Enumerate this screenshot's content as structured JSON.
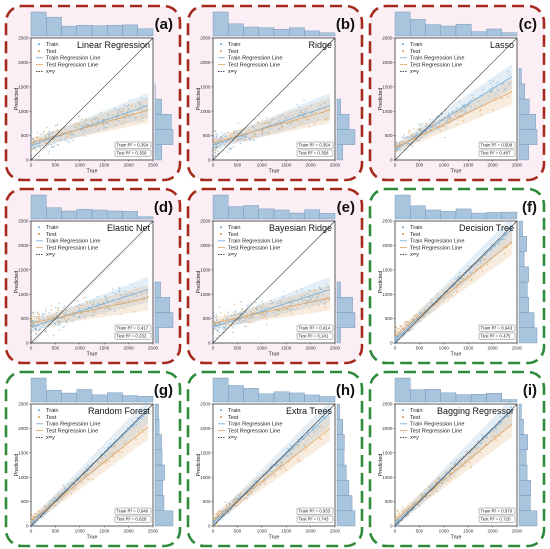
{
  "colors": {
    "red_frame": "#a52a1c",
    "green_frame": "#2e8b3a",
    "red_fill": "#fbeef5",
    "green_fill": "#ffffff",
    "train": "#7fb1d8",
    "test": "#e0a86a",
    "hist": "#a9c4dd",
    "xy": "#333333"
  },
  "legend": {
    "train": "Train",
    "test": "Test",
    "train_line": "Train Regression Line",
    "test_line": "Test Regression Line",
    "xy": "x=y"
  },
  "axis": {
    "xlabel": "True",
    "ylabel": "Predicted"
  },
  "chart_data": [
    {
      "label": "(a)",
      "title": "Linear Regression",
      "frame": "red",
      "type": "scatter",
      "xlim": [
        0,
        2500
      ],
      "ylim": [
        0,
        2500
      ],
      "xticks": [
        0,
        500,
        1000,
        1500,
        2000,
        2500
      ],
      "yticks": [
        0,
        500,
        1000,
        1500,
        2000,
        2500
      ],
      "train_r2": "0.354",
      "test_r2": "0.359",
      "train_fit": [
        300,
        0.34
      ],
      "test_fit": [
        350,
        0.28
      ],
      "seed": 11
    },
    {
      "label": "(b)",
      "title": "Ridge",
      "frame": "red",
      "type": "scatter",
      "xlim": [
        0,
        2500
      ],
      "ylim": [
        0,
        2500
      ],
      "xticks": [
        0,
        500,
        1000,
        1500,
        2000,
        2500
      ],
      "yticks": [
        0,
        500,
        1000,
        1500,
        2000,
        2500
      ],
      "train_r2": "0.354",
      "test_r2": "0.358",
      "train_fit": [
        300,
        0.34
      ],
      "test_fit": [
        350,
        0.28
      ],
      "seed": 23
    },
    {
      "label": "(c)",
      "title": "Lasso",
      "frame": "red",
      "type": "scatter",
      "xlim": [
        0,
        2500
      ],
      "ylim": [
        0,
        2500
      ],
      "xticks": [
        0,
        500,
        1000,
        1500,
        2000,
        2500
      ],
      "yticks": [
        0,
        500,
        1000,
        1500,
        2000,
        2500
      ],
      "train_r2": "0.509",
      "test_r2": "0.487",
      "train_fit": [
        220,
        0.62
      ],
      "test_fit": [
        250,
        0.48
      ],
      "seed": 37
    },
    {
      "label": "(d)",
      "title": "Elastic Net",
      "frame": "red",
      "type": "scatter",
      "xlim": [
        0,
        2500
      ],
      "ylim": [
        0,
        2500
      ],
      "xticks": [
        0,
        500,
        1000,
        1500,
        2000,
        2500
      ],
      "yticks": [
        0,
        500,
        1000,
        1500,
        2000,
        2500
      ],
      "train_r2": "0.417",
      "test_r2": "0.232",
      "train_fit": [
        330,
        0.32
      ],
      "test_fit": [
        400,
        0.22
      ],
      "seed": 41
    },
    {
      "label": "(e)",
      "title": "Bayesian Ridge",
      "frame": "red",
      "type": "scatter",
      "xlim": [
        0,
        2500
      ],
      "ylim": [
        0,
        2500
      ],
      "xticks": [
        0,
        500,
        1000,
        1500,
        2000,
        2500
      ],
      "yticks": [
        0,
        500,
        1000,
        1500,
        2000,
        2500
      ],
      "train_r2": "0.414",
      "test_r2": "0.241",
      "train_fit": [
        330,
        0.32
      ],
      "test_fit": [
        400,
        0.22
      ],
      "seed": 53
    },
    {
      "label": "(f)",
      "title": "Decision Tree",
      "frame": "green",
      "type": "scatter",
      "xlim": [
        0,
        2500
      ],
      "ylim": [
        0,
        2500
      ],
      "xticks": [
        0,
        500,
        1000,
        1500,
        2000,
        2500
      ],
      "yticks": [
        0,
        500,
        1000,
        1500,
        2000,
        2500
      ],
      "train_r2": "0.943",
      "test_r2": "0.475",
      "train_fit": [
        60,
        0.95
      ],
      "test_fit": [
        150,
        0.8
      ],
      "seed": 61
    },
    {
      "label": "(g)",
      "title": "Random Forest",
      "frame": "green",
      "type": "scatter",
      "xlim": [
        0,
        2500
      ],
      "ylim": [
        0,
        2500
      ],
      "xticks": [
        0,
        500,
        1000,
        1500,
        2000,
        2500
      ],
      "yticks": [
        0,
        500,
        1000,
        1500,
        2000,
        2500
      ],
      "train_r2": "0.946",
      "test_r2": "0.828",
      "train_fit": [
        50,
        0.96
      ],
      "test_fit": [
        110,
        0.8
      ],
      "seed": 71
    },
    {
      "label": "(h)",
      "title": "Extra Trees",
      "frame": "green",
      "type": "scatter",
      "xlim": [
        0,
        2500
      ],
      "ylim": [
        0,
        2500
      ],
      "xticks": [
        0,
        500,
        1000,
        1500,
        2000,
        2500
      ],
      "yticks": [
        0,
        500,
        1000,
        1500,
        2000,
        2500
      ],
      "train_r2": "0.933",
      "test_r2": "0.743",
      "train_fit": [
        60,
        0.94
      ],
      "test_fit": [
        130,
        0.78
      ],
      "seed": 83
    },
    {
      "label": "(i)",
      "title": "Bagging Regressor",
      "frame": "green",
      "type": "scatter",
      "xlim": [
        0,
        2500
      ],
      "ylim": [
        0,
        2500
      ],
      "xticks": [
        0,
        500,
        1000,
        1500,
        2000,
        2500
      ],
      "yticks": [
        0,
        500,
        1000,
        1500,
        2000,
        2500
      ],
      "train_r2": "0.970",
      "test_r2": "0.720",
      "train_fit": [
        40,
        0.97
      ],
      "test_fit": [
        120,
        0.82
      ],
      "seed": 97
    }
  ]
}
